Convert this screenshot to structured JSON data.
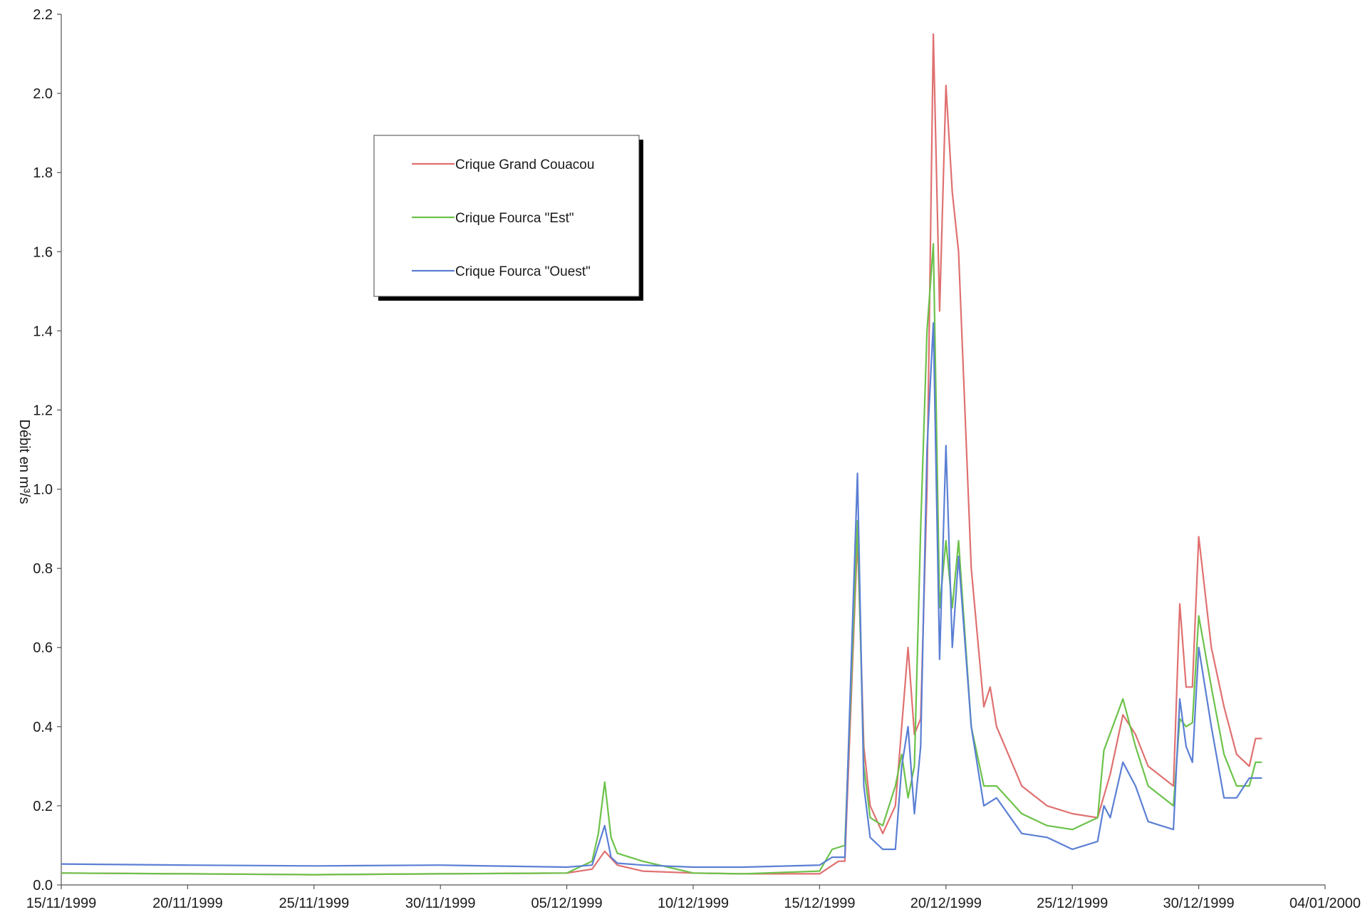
{
  "chart_data": {
    "type": "line",
    "title": "",
    "xlabel": "",
    "ylabel": "Débit en m³/s",
    "ylim": [
      0,
      2.2
    ],
    "yticks": [
      "0.0",
      "0.2",
      "0.4",
      "0.6",
      "0.8",
      "1.0",
      "1.2",
      "1.4",
      "1.6",
      "1.8",
      "2.0",
      "2.2"
    ],
    "xlim": [
      "1999-11-15",
      "2000-01-04"
    ],
    "xticks": [
      "15/11/1999",
      "20/11/1999",
      "25/11/1999",
      "30/11/1999",
      "05/12/1999",
      "10/12/1999",
      "15/12/1999",
      "20/12/1999",
      "25/12/1999",
      "30/12/1999",
      "04/01/2000"
    ],
    "grid": false,
    "legend_position": "top-left",
    "series": [
      {
        "name": "Crique Grand Couacou",
        "color": "#e07070",
        "points": [
          [
            "1999-11-15",
            0.03
          ],
          [
            "1999-11-20",
            0.028
          ],
          [
            "1999-11-25",
            0.026
          ],
          [
            "1999-11-30",
            0.028
          ],
          [
            "1999-12-05",
            0.03
          ],
          [
            "1999-12-06",
            0.04
          ],
          [
            "1999-12-06 12:00",
            0.085
          ],
          [
            "1999-12-07",
            0.05
          ],
          [
            "1999-12-08",
            0.035
          ],
          [
            "1999-12-10",
            0.03
          ],
          [
            "1999-12-12",
            0.028
          ],
          [
            "1999-12-15",
            0.028
          ],
          [
            "1999-12-15 18:00",
            0.06
          ],
          [
            "1999-12-16",
            0.06
          ],
          [
            "1999-12-16 12:00",
            0.88
          ],
          [
            "1999-12-16 18:00",
            0.35
          ],
          [
            "1999-12-17",
            0.2
          ],
          [
            "1999-12-17 12:00",
            0.13
          ],
          [
            "1999-12-18",
            0.2
          ],
          [
            "1999-12-18 12:00",
            0.6
          ],
          [
            "1999-12-18 18:00",
            0.38
          ],
          [
            "1999-12-19",
            0.42
          ],
          [
            "1999-12-19 06:00",
            1.0
          ],
          [
            "1999-12-19 12:00",
            2.15
          ],
          [
            "1999-12-19 18:00",
            1.45
          ],
          [
            "1999-12-20",
            2.02
          ],
          [
            "1999-12-20 06:00",
            1.75
          ],
          [
            "1999-12-20 12:00",
            1.6
          ],
          [
            "1999-12-21",
            0.8
          ],
          [
            "1999-12-21 12:00",
            0.45
          ],
          [
            "1999-12-21 18:00",
            0.5
          ],
          [
            "1999-12-22",
            0.4
          ],
          [
            "1999-12-23",
            0.25
          ],
          [
            "1999-12-24",
            0.2
          ],
          [
            "1999-12-25",
            0.18
          ],
          [
            "1999-12-26",
            0.17
          ],
          [
            "1999-12-26 12:00",
            0.28
          ],
          [
            "1999-12-27",
            0.43
          ],
          [
            "1999-12-27 12:00",
            0.38
          ],
          [
            "1999-12-28",
            0.3
          ],
          [
            "1999-12-29",
            0.25
          ],
          [
            "1999-12-29 06:00",
            0.71
          ],
          [
            "1999-12-29 12:00",
            0.5
          ],
          [
            "1999-12-29 18:00",
            0.5
          ],
          [
            "1999-12-30",
            0.88
          ],
          [
            "1999-12-30 12:00",
            0.6
          ],
          [
            "1999-12-31",
            0.45
          ],
          [
            "1999-12-31 12:00",
            0.33
          ],
          [
            "2000-01-01",
            0.3
          ],
          [
            "2000-01-01 06:00",
            0.37
          ],
          [
            "2000-01-01 12:00",
            0.37
          ]
        ]
      },
      {
        "name": "Crique Fourca \"Est\"",
        "color": "#6cc24a",
        "points": [
          [
            "1999-11-15",
            0.03
          ],
          [
            "1999-11-20",
            0.028
          ],
          [
            "1999-11-25",
            0.026
          ],
          [
            "1999-11-30",
            0.028
          ],
          [
            "1999-12-05",
            0.03
          ],
          [
            "1999-12-06",
            0.06
          ],
          [
            "1999-12-06 06:00",
            0.13
          ],
          [
            "1999-12-06 12:00",
            0.26
          ],
          [
            "1999-12-06 18:00",
            0.12
          ],
          [
            "1999-12-07",
            0.08
          ],
          [
            "1999-12-08",
            0.06
          ],
          [
            "1999-12-09",
            0.045
          ],
          [
            "1999-12-10",
            0.03
          ],
          [
            "1999-12-12",
            0.028
          ],
          [
            "1999-12-15",
            0.035
          ],
          [
            "1999-12-15 12:00",
            0.09
          ],
          [
            "1999-12-16",
            0.1
          ],
          [
            "1999-12-16 12:00",
            0.92
          ],
          [
            "1999-12-16 18:00",
            0.3
          ],
          [
            "1999-12-17",
            0.17
          ],
          [
            "1999-12-17 12:00",
            0.15
          ],
          [
            "1999-12-18",
            0.25
          ],
          [
            "1999-12-18 06:00",
            0.33
          ],
          [
            "1999-12-18 12:00",
            0.22
          ],
          [
            "1999-12-18 18:00",
            0.3
          ],
          [
            "1999-12-19",
            0.9
          ],
          [
            "1999-12-19 06:00",
            1.4
          ],
          [
            "1999-12-19 12:00",
            1.62
          ],
          [
            "1999-12-19 18:00",
            0.7
          ],
          [
            "1999-12-20",
            0.87
          ],
          [
            "1999-12-20 06:00",
            0.7
          ],
          [
            "1999-12-20 12:00",
            0.87
          ],
          [
            "1999-12-21",
            0.4
          ],
          [
            "1999-12-21 12:00",
            0.25
          ],
          [
            "1999-12-22",
            0.25
          ],
          [
            "1999-12-23",
            0.18
          ],
          [
            "1999-12-24",
            0.15
          ],
          [
            "1999-12-25",
            0.14
          ],
          [
            "1999-12-26",
            0.17
          ],
          [
            "1999-12-26 06:00",
            0.34
          ],
          [
            "1999-12-27",
            0.47
          ],
          [
            "1999-12-27 12:00",
            0.35
          ],
          [
            "1999-12-28",
            0.25
          ],
          [
            "1999-12-29",
            0.2
          ],
          [
            "1999-12-29 06:00",
            0.42
          ],
          [
            "1999-12-29 12:00",
            0.4
          ],
          [
            "1999-12-29 18:00",
            0.41
          ],
          [
            "1999-12-30",
            0.68
          ],
          [
            "1999-12-30 12:00",
            0.5
          ],
          [
            "1999-12-31",
            0.33
          ],
          [
            "1999-12-31 12:00",
            0.25
          ],
          [
            "2000-01-01",
            0.25
          ],
          [
            "2000-01-01 06:00",
            0.31
          ],
          [
            "2000-01-01 12:00",
            0.31
          ]
        ]
      },
      {
        "name": "Crique Fourca \"Ouest\"",
        "color": "#5b7fd4",
        "points": [
          [
            "1999-11-15",
            0.053
          ],
          [
            "1999-11-20",
            0.05
          ],
          [
            "1999-11-25",
            0.048
          ],
          [
            "1999-11-30",
            0.05
          ],
          [
            "1999-12-05",
            0.045
          ],
          [
            "1999-12-06",
            0.05
          ],
          [
            "1999-12-06 06:00",
            0.1
          ],
          [
            "1999-12-06 12:00",
            0.15
          ],
          [
            "1999-12-06 18:00",
            0.07
          ],
          [
            "1999-12-07",
            0.055
          ],
          [
            "1999-12-08",
            0.05
          ],
          [
            "1999-12-10",
            0.045
          ],
          [
            "1999-12-12",
            0.045
          ],
          [
            "1999-12-15",
            0.05
          ],
          [
            "1999-12-15 12:00",
            0.07
          ],
          [
            "1999-12-16",
            0.07
          ],
          [
            "1999-12-16 12:00",
            1.04
          ],
          [
            "1999-12-16 18:00",
            0.25
          ],
          [
            "1999-12-17",
            0.12
          ],
          [
            "1999-12-17 12:00",
            0.09
          ],
          [
            "1999-12-18",
            0.09
          ],
          [
            "1999-12-18 06:00",
            0.3
          ],
          [
            "1999-12-18 12:00",
            0.4
          ],
          [
            "1999-12-18 18:00",
            0.18
          ],
          [
            "1999-12-19",
            0.35
          ],
          [
            "1999-12-19 06:00",
            1.1
          ],
          [
            "1999-12-19 12:00",
            1.42
          ],
          [
            "1999-12-19 18:00",
            0.57
          ],
          [
            "1999-12-20",
            1.11
          ],
          [
            "1999-12-20 06:00",
            0.6
          ],
          [
            "1999-12-20 12:00",
            0.83
          ],
          [
            "1999-12-21",
            0.4
          ],
          [
            "1999-12-21 12:00",
            0.2
          ],
          [
            "1999-12-22",
            0.22
          ],
          [
            "1999-12-23",
            0.13
          ],
          [
            "1999-12-24",
            0.12
          ],
          [
            "1999-12-25",
            0.09
          ],
          [
            "1999-12-26",
            0.11
          ],
          [
            "1999-12-26 06:00",
            0.2
          ],
          [
            "1999-12-26 12:00",
            0.17
          ],
          [
            "1999-12-27",
            0.31
          ],
          [
            "1999-12-27 12:00",
            0.25
          ],
          [
            "1999-12-28",
            0.16
          ],
          [
            "1999-12-28 12:00",
            0.15
          ],
          [
            "1999-12-29",
            0.14
          ],
          [
            "1999-12-29 06:00",
            0.47
          ],
          [
            "1999-12-29 12:00",
            0.35
          ],
          [
            "1999-12-29 18:00",
            0.31
          ],
          [
            "1999-12-30",
            0.6
          ],
          [
            "1999-12-30 12:00",
            0.4
          ],
          [
            "1999-12-31",
            0.22
          ],
          [
            "1999-12-31 12:00",
            0.22
          ],
          [
            "2000-01-01",
            0.27
          ],
          [
            "2000-01-01 12:00",
            0.27
          ]
        ]
      }
    ]
  }
}
